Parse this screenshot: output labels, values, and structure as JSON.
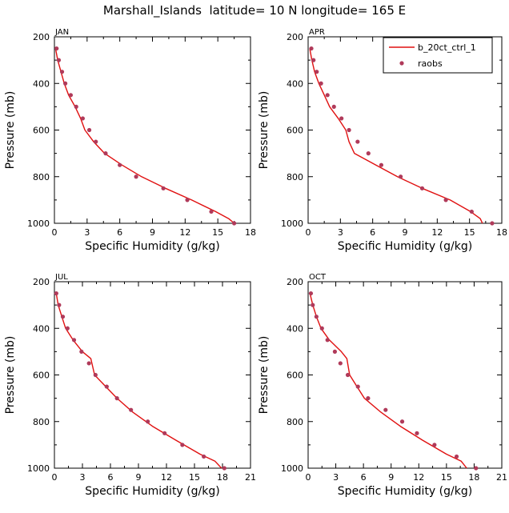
{
  "title": "Marshall_Islands  latitude= 10 N longitude= 165 E",
  "legend": {
    "model": "b_20ct_ctrl_1",
    "obs": "raobs"
  },
  "colors": {
    "model_line": "#e01010",
    "obs_marker": "#b03a5a",
    "axis": "#000000"
  },
  "chart_data": [
    {
      "type": "line",
      "panel": "JAN",
      "xlabel": "Specific Humidity (g/kg)",
      "ylabel": "Pressure (mb)",
      "xlim": [
        0,
        18
      ],
      "ylim": [
        1000,
        200
      ],
      "xticks": [
        0,
        3,
        6,
        9,
        12,
        15,
        18
      ],
      "yticks": [
        200,
        400,
        600,
        800,
        1000
      ],
      "series": [
        {
          "name": "b_20ct_ctrl_1",
          "kind": "line",
          "points": [
            [
              0.1,
              250
            ],
            [
              0.3,
              300
            ],
            [
              0.6,
              350
            ],
            [
              0.9,
              400
            ],
            [
              1.3,
              450
            ],
            [
              1.9,
              500
            ],
            [
              2.4,
              550
            ],
            [
              2.8,
              600
            ],
            [
              3.6,
              650
            ],
            [
              4.6,
              700
            ],
            [
              6.2,
              750
            ],
            [
              8.0,
              800
            ],
            [
              10.2,
              850
            ],
            [
              12.6,
              900
            ],
            [
              14.8,
              950
            ],
            [
              16.0,
              980
            ],
            [
              16.5,
              1000
            ]
          ]
        },
        {
          "name": "raobs",
          "kind": "scatter",
          "points": [
            [
              0.2,
              250
            ],
            [
              0.4,
              300
            ],
            [
              0.7,
              350
            ],
            [
              1.0,
              400
            ],
            [
              1.5,
              450
            ],
            [
              2.0,
              500
            ],
            [
              2.6,
              550
            ],
            [
              3.2,
              600
            ],
            [
              3.8,
              650
            ],
            [
              4.7,
              700
            ],
            [
              6.0,
              750
            ],
            [
              7.5,
              800
            ],
            [
              10.0,
              850
            ],
            [
              12.2,
              900
            ],
            [
              14.4,
              950
            ],
            [
              16.5,
              1000
            ]
          ]
        }
      ]
    },
    {
      "type": "line",
      "panel": "APR",
      "xlabel": "Specific Humidity (g/kg)",
      "ylabel": "Pressure (mb)",
      "xlim": [
        0,
        18
      ],
      "ylim": [
        1000,
        200
      ],
      "xticks": [
        0,
        3,
        6,
        9,
        12,
        15,
        18
      ],
      "yticks": [
        200,
        400,
        600,
        800,
        1000
      ],
      "series": [
        {
          "name": "b_20ct_ctrl_1",
          "kind": "line",
          "points": [
            [
              0.15,
              250
            ],
            [
              0.35,
              300
            ],
            [
              0.6,
              350
            ],
            [
              1.0,
              400
            ],
            [
              1.5,
              450
            ],
            [
              2.0,
              500
            ],
            [
              2.8,
              550
            ],
            [
              3.5,
              600
            ],
            [
              3.8,
              650
            ],
            [
              4.3,
              700
            ],
            [
              6.3,
              750
            ],
            [
              8.3,
              800
            ],
            [
              10.6,
              850
            ],
            [
              13.2,
              900
            ],
            [
              15.1,
              950
            ],
            [
              16.0,
              980
            ],
            [
              16.2,
              1000
            ]
          ]
        },
        {
          "name": "raobs",
          "kind": "scatter",
          "points": [
            [
              0.3,
              250
            ],
            [
              0.5,
              300
            ],
            [
              0.8,
              350
            ],
            [
              1.2,
              400
            ],
            [
              1.8,
              450
            ],
            [
              2.4,
              500
            ],
            [
              3.1,
              550
            ],
            [
              3.8,
              600
            ],
            [
              4.6,
              650
            ],
            [
              5.6,
              700
            ],
            [
              6.8,
              750
            ],
            [
              8.6,
              800
            ],
            [
              10.6,
              850
            ],
            [
              12.8,
              900
            ],
            [
              15.2,
              950
            ],
            [
              17.1,
              1000
            ]
          ]
        }
      ]
    },
    {
      "type": "line",
      "panel": "JUL",
      "xlabel": "Specific Humidity (g/kg)",
      "ylabel": "Pressure (mb)",
      "xlim": [
        0,
        21
      ],
      "ylim": [
        1000,
        200
      ],
      "xticks": [
        0,
        3,
        6,
        9,
        12,
        15,
        18,
        21
      ],
      "yticks": [
        200,
        400,
        600,
        800,
        1000
      ],
      "series": [
        {
          "name": "b_20ct_ctrl_1",
          "kind": "line",
          "points": [
            [
              0.2,
              250
            ],
            [
              0.4,
              300
            ],
            [
              0.8,
              350
            ],
            [
              1.2,
              400
            ],
            [
              2.0,
              450
            ],
            [
              3.0,
              500
            ],
            [
              3.9,
              530
            ],
            [
              4.3,
              600
            ],
            [
              5.5,
              650
            ],
            [
              6.7,
              700
            ],
            [
              8.4,
              760
            ],
            [
              10.5,
              820
            ],
            [
              13.0,
              880
            ],
            [
              15.6,
              940
            ],
            [
              17.2,
              970
            ],
            [
              17.9,
              1000
            ]
          ]
        },
        {
          "name": "raobs",
          "kind": "scatter",
          "points": [
            [
              0.2,
              250
            ],
            [
              0.5,
              300
            ],
            [
              0.9,
              350
            ],
            [
              1.4,
              400
            ],
            [
              2.1,
              450
            ],
            [
              2.9,
              500
            ],
            [
              3.7,
              550
            ],
            [
              4.4,
              600
            ],
            [
              5.6,
              650
            ],
            [
              6.7,
              700
            ],
            [
              8.2,
              750
            ],
            [
              10.0,
              800
            ],
            [
              11.8,
              850
            ],
            [
              13.7,
              900
            ],
            [
              16.0,
              950
            ],
            [
              18.2,
              1000
            ]
          ]
        }
      ]
    },
    {
      "type": "line",
      "panel": "OCT",
      "xlabel": "Specific Humidity (g/kg)",
      "ylabel": "Pressure (mb)",
      "xlim": [
        0,
        21
      ],
      "ylim": [
        1000,
        200
      ],
      "xticks": [
        0,
        3,
        6,
        9,
        12,
        15,
        18,
        21
      ],
      "yticks": [
        200,
        400,
        600,
        800,
        1000
      ],
      "series": [
        {
          "name": "b_20ct_ctrl_1",
          "kind": "line",
          "points": [
            [
              0.2,
              250
            ],
            [
              0.5,
              300
            ],
            [
              0.9,
              350
            ],
            [
              1.4,
              400
            ],
            [
              2.3,
              450
            ],
            [
              3.6,
              500
            ],
            [
              4.2,
              530
            ],
            [
              4.5,
              600
            ],
            [
              5.3,
              650
            ],
            [
              6.1,
              700
            ],
            [
              7.9,
              760
            ],
            [
              10.0,
              820
            ],
            [
              12.4,
              880
            ],
            [
              15.0,
              940
            ],
            [
              16.6,
              970
            ],
            [
              17.2,
              1000
            ]
          ]
        },
        {
          "name": "raobs",
          "kind": "scatter",
          "points": [
            [
              0.3,
              250
            ],
            [
              0.5,
              300
            ],
            [
              0.9,
              350
            ],
            [
              1.5,
              400
            ],
            [
              2.1,
              450
            ],
            [
              2.9,
              500
            ],
            [
              3.5,
              550
            ],
            [
              4.3,
              600
            ],
            [
              5.4,
              650
            ],
            [
              6.5,
              700
            ],
            [
              8.4,
              750
            ],
            [
              10.2,
              800
            ],
            [
              11.8,
              850
            ],
            [
              13.7,
              900
            ],
            [
              16.1,
              950
            ],
            [
              18.2,
              1000
            ]
          ]
        }
      ]
    }
  ]
}
